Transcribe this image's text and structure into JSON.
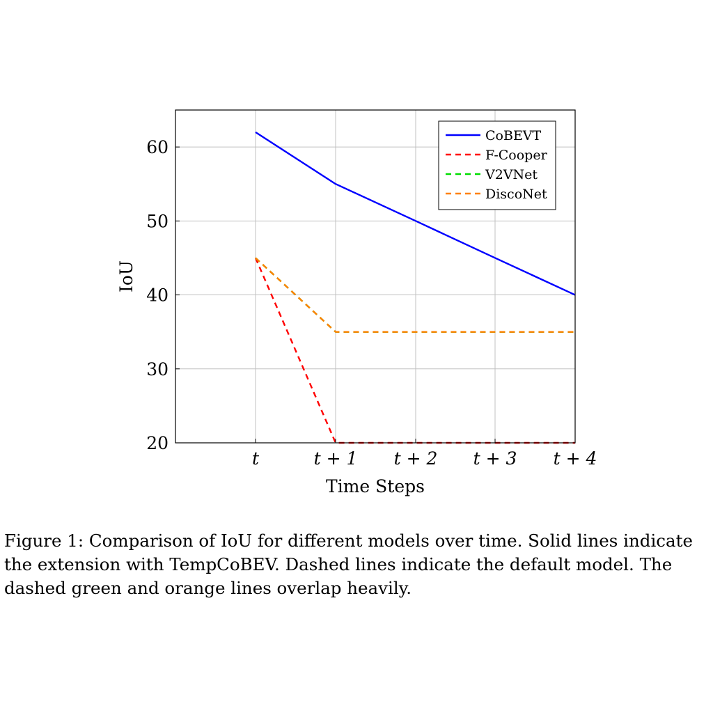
{
  "chart_data": {
    "type": "line",
    "title": "",
    "xlabel": "Time Steps",
    "ylabel": "IoU",
    "categories": [
      "t",
      "t + 1",
      "t + 2",
      "t + 3",
      "t + 4"
    ],
    "ylim": [
      20,
      65
    ],
    "yticks": [
      20,
      30,
      40,
      50,
      60
    ],
    "grid": true,
    "legend_position": "top-right",
    "series": [
      {
        "name": "CoBEVT",
        "values": [
          62,
          55,
          50,
          45,
          40
        ],
        "color": "#0000ff",
        "style": "solid"
      },
      {
        "name": "F-Cooper",
        "values": [
          45,
          20,
          20,
          20,
          20
        ],
        "color": "#ff0000",
        "style": "dashed"
      },
      {
        "name": "V2VNet",
        "values": [
          45,
          35,
          35,
          35,
          35
        ],
        "color": "#00dd00",
        "style": "dashed"
      },
      {
        "name": "DiscoNet",
        "values": [
          45,
          35,
          35,
          35,
          35
        ],
        "color": "#ff8000",
        "style": "dashed"
      }
    ]
  },
  "caption": "Figure 1: Comparison of IoU for different models over time. Solid lines indicate the extension with TempCoBEV. Dashed lines indicate the default model. The dashed green and orange lines overlap heavily."
}
